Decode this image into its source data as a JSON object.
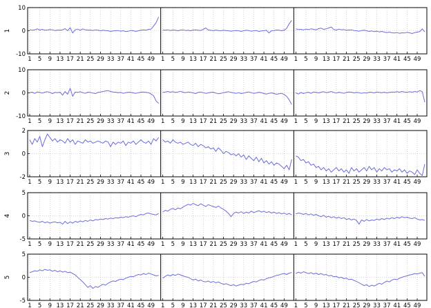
{
  "chart_data": {
    "type": "line",
    "layout": "5 stacked panels, each split into 3 segments of 52 points",
    "line_color": "#6b6bdc",
    "grid": true,
    "x_tick_labels": [
      "1",
      "5",
      "9",
      "13",
      "17",
      "21",
      "25",
      "29",
      "33",
      "37",
      "41",
      "45",
      "49"
    ],
    "segments_per_panel": 3,
    "points_per_segment": 52,
    "panels": [
      {
        "ylabel": "1",
        "ylim": [
          -10,
          10
        ],
        "yticks": [
          -10,
          0,
          10
        ],
        "segments": [
          [
            0.5,
            0.2,
            0.4,
            0.8,
            0.3,
            0.6,
            0.2,
            0.3,
            0.5,
            0.4,
            0.1,
            0.3,
            0.2,
            0.4,
            0.9,
            0.0,
            1.3,
            -1.0,
            0.4,
            0.7,
            0.2,
            0.8,
            0.4,
            0.2,
            0.3,
            0.1,
            0.4,
            0.2,
            0.0,
            0.2,
            0.1,
            0.0,
            -0.3,
            -0.1,
            0.0,
            0.1,
            -0.2,
            0.0,
            -0.4,
            -0.2,
            0.1,
            0.0,
            -0.3,
            0.0,
            0.2,
            0.4,
            0.2,
            0.6,
            0.7,
            2.0,
            3.5,
            6.0
          ],
          [
            0.3,
            0.2,
            0.4,
            0.1,
            0.3,
            0.2,
            0.0,
            0.3,
            0.4,
            0.1,
            0.2,
            0.0,
            0.3,
            0.4,
            0.2,
            0.1,
            0.6,
            1.2,
            0.3,
            0.2,
            0.0,
            0.3,
            0.1,
            0.0,
            0.2,
            0.1,
            0.0,
            -0.2,
            0.0,
            0.1,
            0.0,
            -0.3,
            0.0,
            0.2,
            0.1,
            -0.2,
            0.0,
            0.1,
            -0.3,
            -0.1,
            0.0,
            0.2,
            -1.0,
            0.0,
            0.1,
            0.3,
            0.2,
            0.0,
            0.2,
            1.0,
            3.0,
            4.5
          ],
          [
            0.8,
            0.5,
            0.6,
            0.4,
            0.7,
            0.5,
            0.8,
            0.6,
            0.4,
            0.9,
            1.1,
            0.6,
            0.8,
            1.2,
            1.6,
            0.5,
            0.3,
            0.7,
            0.4,
            0.5,
            0.2,
            0.3,
            0.4,
            0.1,
            0.0,
            -0.2,
            0.1,
            0.2,
            0.0,
            -0.3,
            -0.1,
            -0.4,
            -0.2,
            -0.5,
            -0.3,
            -0.6,
            -0.8,
            -0.6,
            -0.9,
            -1.0,
            -0.8,
            -1.1,
            -0.9,
            -1.0,
            -0.7,
            -0.9,
            -1.2,
            -0.8,
            -0.6,
            -0.4,
            0.8,
            -0.5
          ]
        ]
      },
      {
        "ylabel": "2",
        "ylim": [
          -10,
          10
        ],
        "yticks": [
          -10,
          0,
          10
        ],
        "segments": [
          [
            0.1,
            0.3,
            -0.2,
            0.4,
            0.2,
            -0.1,
            0.3,
            0.5,
            0.2,
            -0.3,
            0.2,
            0.1,
            0.3,
            -1.0,
            0.6,
            -0.6,
            2.0,
            -1.5,
            0.4,
            0.2,
            0.5,
            0.1,
            -0.2,
            0.3,
            0.2,
            -0.1,
            -0.3,
            0.2,
            0.4,
            0.6,
            0.8,
            1.0,
            0.6,
            0.4,
            0.3,
            0.1,
            0.2,
            -0.2,
            0.1,
            0.3,
            0.2,
            0.0,
            -0.2,
            0.1,
            0.3,
            0.4,
            0.2,
            0.1,
            -0.5,
            -1.2,
            -3.5,
            -4.5
          ],
          [
            0.2,
            0.4,
            0.6,
            0.3,
            0.5,
            0.2,
            0.4,
            0.7,
            0.3,
            0.1,
            0.4,
            0.2,
            0.0,
            -0.3,
            0.2,
            0.4,
            0.1,
            -0.2,
            0.0,
            0.2,
            0.3,
            -0.1,
            -0.4,
            -0.2,
            0.1,
            0.3,
            0.5,
            0.2,
            0.0,
            -0.2,
            0.1,
            -0.3,
            -0.1,
            0.2,
            0.4,
            0.1,
            -0.2,
            0.0,
            0.3,
            0.1,
            -0.3,
            -0.5,
            -0.2,
            0.0,
            -0.3,
            -0.6,
            -0.4,
            -0.2,
            -0.7,
            -1.5,
            -3.0,
            -5.0
          ],
          [
            0.0,
            -0.5,
            0.2,
            -0.3,
            0.1,
            0.3,
            -0.2,
            0.4,
            0.2,
            0.0,
            0.3,
            0.5,
            0.1,
            0.3,
            0.6,
            0.2,
            -0.1,
            0.3,
            0.1,
            -0.2,
            0.2,
            0.4,
            0.3,
            0.0,
            0.2,
            0.1,
            -0.2,
            0.1,
            -0.1,
            0.3,
            0.2,
            0.0,
            0.4,
            0.2,
            0.1,
            0.3,
            0.0,
            0.2,
            0.4,
            0.3,
            0.5,
            0.3,
            0.6,
            0.4,
            0.2,
            0.5,
            0.3,
            0.6,
            0.4,
            1.0,
            0.5,
            -4.0
          ]
        ]
      },
      {
        "ylabel": "3",
        "ylim": [
          -2,
          2
        ],
        "yticks": [
          -2,
          0,
          2
        ],
        "segments": [
          [
            1.2,
            0.8,
            1.3,
            1.0,
            1.5,
            0.6,
            1.2,
            1.7,
            1.4,
            1.1,
            1.3,
            1.0,
            1.2,
            1.1,
            0.9,
            1.3,
            1.0,
            1.2,
            0.8,
            1.1,
            1.0,
            0.9,
            1.2,
            1.0,
            1.1,
            0.9,
            1.0,
            1.1,
            1.0,
            0.9,
            1.1,
            1.0,
            0.6,
            1.0,
            0.8,
            1.0,
            0.9,
            1.1,
            0.7,
            1.0,
            0.9,
            1.1,
            0.8,
            1.0,
            1.2,
            1.0,
            0.9,
            1.1,
            0.8,
            1.3,
            1.1,
            1.4
          ],
          [
            1.2,
            1.0,
            1.1,
            0.9,
            1.2,
            1.0,
            0.9,
            1.0,
            0.8,
            0.9,
            1.0,
            0.8,
            0.7,
            0.9,
            0.6,
            0.8,
            0.7,
            0.5,
            0.6,
            0.4,
            0.5,
            0.2,
            0.5,
            0.3,
            0.0,
            0.2,
            0.1,
            -0.1,
            0.0,
            -0.2,
            0.0,
            -0.3,
            -0.1,
            -0.5,
            -0.2,
            -0.4,
            -0.6,
            -0.3,
            -0.7,
            -0.4,
            -0.8,
            -0.6,
            -0.9,
            -0.7,
            -1.0,
            -0.8,
            -0.9,
            -1.1,
            -1.3,
            -1.0,
            -1.4,
            -0.5
          ],
          [
            -0.2,
            -0.3,
            -0.6,
            -0.5,
            -0.8,
            -0.7,
            -1.0,
            -0.9,
            -1.2,
            -1.1,
            -1.4,
            -1.2,
            -1.5,
            -1.3,
            -1.6,
            -1.4,
            -1.2,
            -1.5,
            -1.3,
            -1.6,
            -1.4,
            -1.7,
            -1.2,
            -1.5,
            -1.3,
            -1.6,
            -1.4,
            -1.2,
            -1.5,
            -1.1,
            -1.4,
            -1.2,
            -1.6,
            -1.3,
            -1.5,
            -1.2,
            -1.4,
            -1.3,
            -1.6,
            -1.4,
            -1.5,
            -1.3,
            -1.6,
            -1.4,
            -1.7,
            -1.5,
            -1.6,
            -1.8,
            -1.4,
            -1.7,
            -1.9,
            -0.9
          ]
        ]
      },
      {
        "ylabel": "4",
        "ylim": [
          -5,
          5
        ],
        "yticks": [
          -5,
          0,
          5
        ],
        "segments": [
          [
            -1.0,
            -1.2,
            -1.1,
            -1.3,
            -1.4,
            -1.2,
            -1.5,
            -1.3,
            -1.6,
            -1.4,
            -1.3,
            -1.5,
            -1.4,
            -1.8,
            -1.2,
            -1.7,
            -1.3,
            -1.6,
            -1.2,
            -1.4,
            -1.1,
            -1.3,
            -1.0,
            -1.2,
            -0.9,
            -1.1,
            -0.8,
            -0.9,
            -0.7,
            -0.8,
            -0.6,
            -0.7,
            -0.5,
            -0.6,
            -0.4,
            -0.5,
            -0.3,
            -0.4,
            -0.2,
            -0.3,
            -0.1,
            0.0,
            -0.2,
            0.1,
            0.3,
            0.2,
            0.5,
            0.6,
            0.4,
            0.3,
            0.2,
            0.5
          ],
          [
            0.8,
            1.2,
            1.0,
            1.4,
            1.6,
            1.3,
            1.7,
            1.5,
            1.9,
            2.2,
            2.5,
            2.3,
            2.7,
            2.4,
            2.2,
            2.6,
            2.3,
            2.0,
            2.4,
            2.2,
            2.0,
            1.8,
            2.1,
            1.7,
            1.4,
            1.0,
            0.5,
            -0.2,
            0.5,
            0.8,
            0.6,
            0.9,
            0.5,
            0.8,
            0.6,
            1.0,
            0.7,
            0.9,
            1.1,
            0.8,
            1.0,
            0.7,
            0.9,
            0.6,
            0.8,
            0.5,
            0.7,
            0.4,
            0.6,
            0.3,
            0.5,
            0.2
          ],
          [
            0.4,
            0.6,
            0.5,
            0.3,
            0.5,
            0.2,
            0.4,
            0.1,
            0.3,
            0.0,
            -0.2,
            0.1,
            -0.3,
            -0.1,
            -0.4,
            -0.2,
            -0.5,
            -0.3,
            -0.6,
            -0.4,
            -0.8,
            -0.6,
            -0.9,
            -0.7,
            -1.0,
            -1.8,
            -0.9,
            -1.2,
            -0.8,
            -1.1,
            -0.9,
            -1.0,
            -0.7,
            -0.9,
            -0.6,
            -0.8,
            -0.5,
            -0.7,
            -0.4,
            -0.6,
            -0.3,
            -0.5,
            -0.2,
            -0.4,
            -0.3,
            -0.5,
            -0.6,
            -0.4,
            -0.7,
            -0.9,
            -0.8,
            -1.0
          ]
        ]
      },
      {
        "ylabel": "5",
        "ylim": [
          -5,
          5
        ],
        "yticks": [
          -5,
          0,
          5
        ],
        "segments": [
          [
            1.0,
            1.2,
            1.4,
            1.3,
            1.6,
            1.4,
            1.7,
            1.5,
            1.6,
            1.3,
            1.5,
            1.2,
            1.4,
            1.1,
            1.3,
            1.0,
            1.1,
            0.8,
            0.5,
            0.0,
            -0.5,
            -1.0,
            -1.6,
            -2.2,
            -1.8,
            -2.4,
            -2.0,
            -2.2,
            -1.8,
            -1.5,
            -1.7,
            -1.3,
            -1.0,
            -0.8,
            -0.9,
            -0.6,
            -0.4,
            -0.5,
            -0.2,
            0.0,
            0.2,
            0.1,
            0.4,
            0.6,
            0.5,
            0.8,
            0.6,
            0.9,
            0.7,
            0.5,
            0.3,
            0.4
          ],
          [
            -0.2,
            0.2,
            0.5,
            0.3,
            0.6,
            0.4,
            0.7,
            0.5,
            0.3,
            0.1,
            0.0,
            -0.3,
            -0.6,
            -0.4,
            -0.8,
            -0.6,
            -0.9,
            -1.0,
            -0.8,
            -1.1,
            -0.9,
            -1.2,
            -1.0,
            -1.3,
            -1.5,
            -1.4,
            -1.6,
            -1.8,
            -1.6,
            -1.9,
            -1.7,
            -1.5,
            -1.6,
            -1.3,
            -1.4,
            -1.1,
            -0.9,
            -1.0,
            -0.7,
            -0.5,
            -0.6,
            -0.3,
            -0.1,
            0.0,
            0.2,
            0.4,
            0.5,
            0.7,
            0.8,
            0.6,
            0.9,
            1.0
          ],
          [
            0.8,
            1.1,
            0.9,
            1.2,
            1.0,
            0.8,
            1.0,
            0.7,
            0.9,
            0.6,
            0.8,
            0.5,
            0.6,
            0.3,
            0.4,
            0.1,
            0.2,
            -0.1,
            0.0,
            -0.3,
            -0.2,
            -0.5,
            -0.4,
            -0.7,
            -0.9,
            -1.2,
            -1.5,
            -1.8,
            -1.6,
            -2.0,
            -1.7,
            -1.9,
            -1.6,
            -1.3,
            -1.5,
            -1.1,
            -0.8,
            -1.0,
            -0.6,
            -0.4,
            -0.5,
            -0.2,
            0.0,
            0.2,
            0.3,
            0.5,
            0.6,
            0.8,
            0.7,
            0.9,
            1.0,
            0.2
          ]
        ]
      }
    ]
  }
}
